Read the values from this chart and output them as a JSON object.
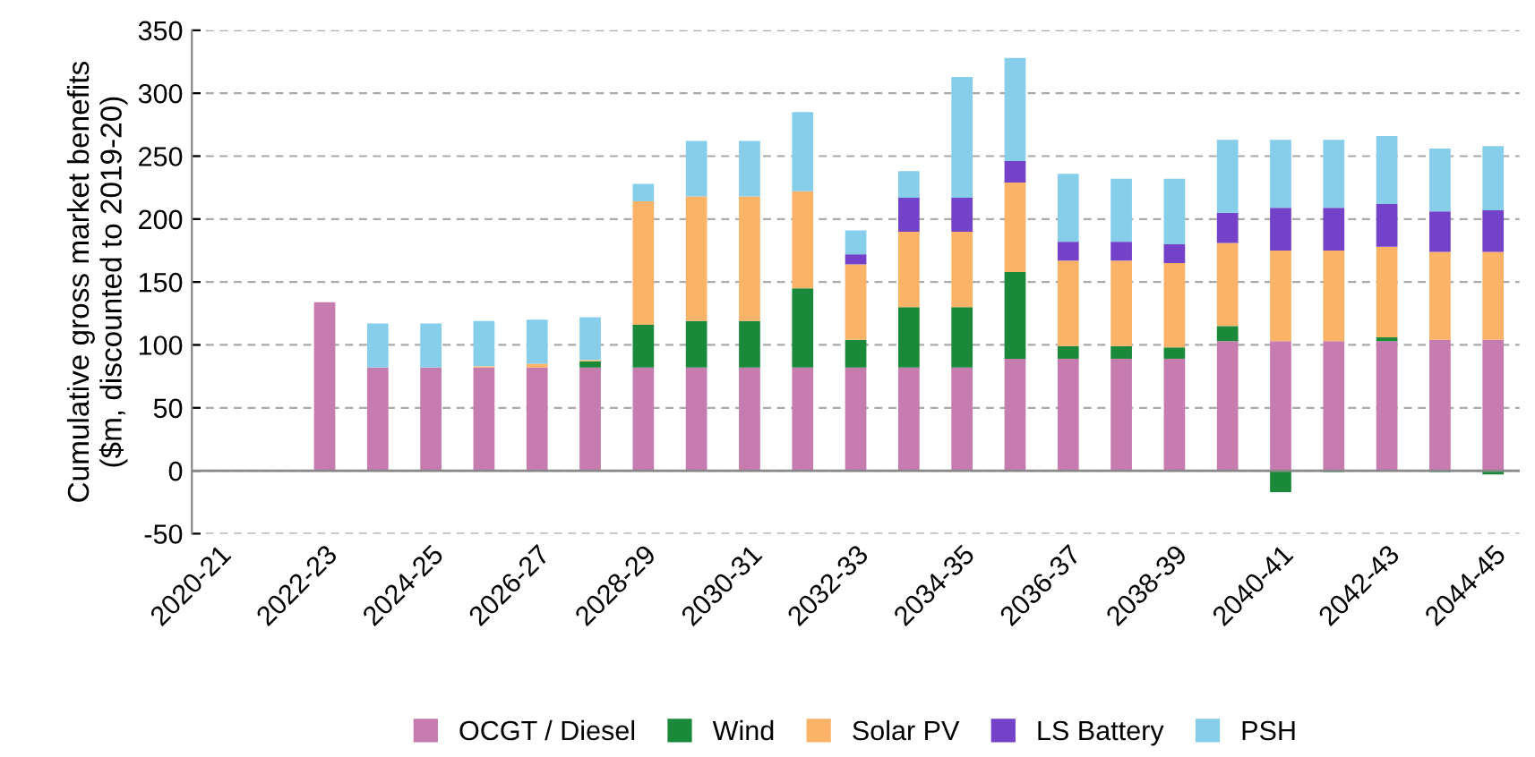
{
  "chart_data": {
    "type": "bar",
    "stacked": true,
    "ylabel": "Cumulative gross market benefits\n($m, discounted to 2019-20)",
    "categories": [
      "2020-21",
      null,
      "2022-23",
      null,
      "2024-25",
      null,
      "2026-27",
      null,
      "2028-29",
      null,
      "2030-31",
      null,
      "2032-33",
      null,
      "2034-35",
      null,
      "2036-37",
      null,
      "2038-39",
      null,
      "2040-41",
      null,
      "2042-43",
      null,
      "2044-45"
    ],
    "series": [
      {
        "name": "OCGT / Diesel",
        "color": "#c77cb0",
        "values": [
          0,
          0,
          134,
          82,
          82,
          82,
          82,
          82,
          82,
          82,
          82,
          82,
          82,
          82,
          82,
          89,
          89,
          89,
          89,
          103,
          103,
          103,
          103,
          104,
          104
        ]
      },
      {
        "name": "Wind",
        "color": "#1a8a3a",
        "values": [
          0,
          0,
          0,
          0,
          0,
          0,
          0,
          5,
          34,
          37,
          37,
          63,
          22,
          48,
          48,
          69,
          10,
          10,
          9,
          12,
          -17,
          -1,
          3,
          -1,
          -3
        ]
      },
      {
        "name": "Solar PV",
        "color": "#fbb368",
        "values": [
          0,
          0,
          0,
          0,
          0,
          1,
          3,
          1,
          98,
          99,
          99,
          77,
          60,
          60,
          60,
          71,
          68,
          68,
          67,
          66,
          72,
          72,
          72,
          70,
          70
        ]
      },
      {
        "name": "LS Battery",
        "color": "#7442c8",
        "values": [
          0,
          0,
          0,
          0,
          0,
          0,
          0,
          0,
          0,
          0,
          0,
          0,
          8,
          27,
          27,
          17,
          15,
          15,
          15,
          24,
          34,
          34,
          34,
          32,
          33
        ]
      },
      {
        "name": "PSH",
        "color": "#87ceeb",
        "values": [
          0,
          0,
          0,
          35,
          35,
          36,
          35,
          34,
          14,
          44,
          44,
          63,
          19,
          21,
          96,
          82,
          54,
          50,
          52,
          58,
          54,
          54,
          54,
          50,
          51
        ]
      }
    ],
    "ylim": [
      -50,
      350
    ],
    "yticks": [
      -50,
      0,
      50,
      100,
      150,
      200,
      250,
      300,
      350
    ],
    "grid": "y",
    "legend": "bottom"
  }
}
